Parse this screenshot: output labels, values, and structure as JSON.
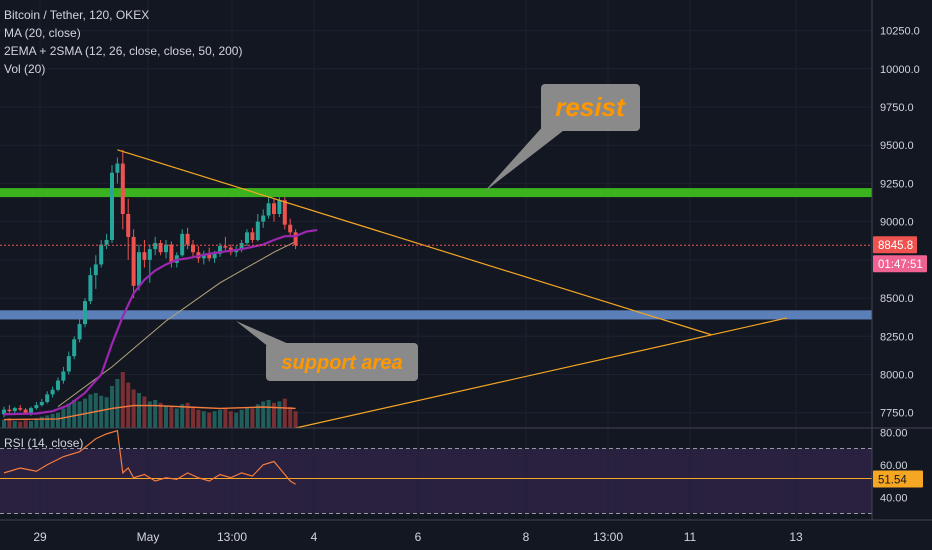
{
  "header": {
    "symbol": "Bitcoin / Tether, 120, OKEX",
    "indicators": [
      "MA (20, close)",
      "2EMA + 2SMA (12, 26, close, close, 50, 200)",
      "Vol (20)"
    ]
  },
  "rsi_label": "RSI (14, close)",
  "annotations": {
    "resist": "resist",
    "support": "support area"
  },
  "price_badge": "8845.8",
  "timer_badge": "01:47:51",
  "rsi_badge": "51.54",
  "colors": {
    "background": "#131722",
    "up": "#26a69a",
    "down": "#ef5350",
    "resist_line": "#3bb31f",
    "support_band": "#5b7fb8",
    "trendline": "#f5a623",
    "ma": "#9c27b0",
    "label_box": "#8a8a8a",
    "label_text": "#ff9800",
    "price_badge": "#ef5350",
    "rsi_line": "#f57c3d"
  },
  "chart_data": [
    {
      "type": "candlestick",
      "title": "Bitcoin / Tether, 120, OKEX",
      "y_ticks": [
        10250.0,
        10000.0,
        9750.0,
        9500.0,
        9250.0,
        9000.0,
        8750.0,
        8500.0,
        8250.0,
        8000.0,
        7750.0
      ],
      "x_ticks": [
        "29",
        "May",
        "13:00",
        "4",
        "6",
        "8",
        "13:00",
        "11",
        "13"
      ],
      "ylim": [
        7650,
        10450
      ],
      "last_price": 8845.8,
      "resistance": 9190,
      "support_band": [
        8360,
        8420
      ],
      "candles": [
        [
          7740,
          7790,
          7720,
          7770
        ],
        [
          7770,
          7800,
          7750,
          7760
        ],
        [
          7760,
          7790,
          7740,
          7780
        ],
        [
          7780,
          7800,
          7760,
          7770
        ],
        [
          7770,
          7780,
          7740,
          7750
        ],
        [
          7750,
          7790,
          7730,
          7780
        ],
        [
          7780,
          7820,
          7770,
          7800
        ],
        [
          7800,
          7840,
          7790,
          7820
        ],
        [
          7820,
          7890,
          7810,
          7870
        ],
        [
          7870,
          7920,
          7850,
          7900
        ],
        [
          7900,
          7980,
          7890,
          7960
        ],
        [
          7960,
          8050,
          7940,
          8020
        ],
        [
          8020,
          8150,
          8000,
          8120
        ],
        [
          8120,
          8250,
          8100,
          8230
        ],
        [
          8230,
          8360,
          8210,
          8330
        ],
        [
          8330,
          8500,
          8310,
          8480
        ],
        [
          8480,
          8700,
          8460,
          8650
        ],
        [
          8650,
          8780,
          8560,
          8720
        ],
        [
          8720,
          8880,
          8700,
          8850
        ],
        [
          8850,
          8920,
          8820,
          8880
        ],
        [
          8880,
          9370,
          8860,
          9320
        ],
        [
          9320,
          9420,
          9250,
          9380
        ],
        [
          9380,
          9470,
          8950,
          9050
        ],
        [
          9050,
          9150,
          8750,
          8900
        ],
        [
          8900,
          8950,
          8500,
          8580
        ],
        [
          8580,
          8850,
          8550,
          8800
        ],
        [
          8800,
          8880,
          8700,
          8750
        ],
        [
          8750,
          8850,
          8600,
          8820
        ],
        [
          8820,
          8900,
          8780,
          8860
        ],
        [
          8860,
          8880,
          8780,
          8800
        ],
        [
          8800,
          8880,
          8760,
          8850
        ],
        [
          8850,
          8870,
          8700,
          8730
        ],
        [
          8730,
          8800,
          8700,
          8780
        ],
        [
          8780,
          8950,
          8770,
          8920
        ],
        [
          8920,
          8960,
          8820,
          8850
        ],
        [
          8850,
          8880,
          8760,
          8800
        ],
        [
          8800,
          8840,
          8730,
          8760
        ],
        [
          8760,
          8810,
          8720,
          8790
        ],
        [
          8790,
          8830,
          8740,
          8760
        ],
        [
          8760,
          8810,
          8730,
          8790
        ],
        [
          8790,
          8860,
          8770,
          8840
        ],
        [
          8840,
          8900,
          8810,
          8830
        ],
        [
          8830,
          8850,
          8780,
          8800
        ],
        [
          8800,
          8840,
          8770,
          8820
        ],
        [
          8820,
          8880,
          8800,
          8860
        ],
        [
          8860,
          8950,
          8840,
          8930
        ],
        [
          8930,
          8960,
          8860,
          8880
        ],
        [
          8880,
          9050,
          8870,
          9000
        ],
        [
          9000,
          9080,
          8960,
          9040
        ],
        [
          9040,
          9160,
          9020,
          9120
        ],
        [
          9120,
          9150,
          9000,
          9050
        ],
        [
          9050,
          9160,
          9030,
          9140
        ],
        [
          9140,
          9160,
          8950,
          8980
        ],
        [
          8980,
          9020,
          8900,
          8930
        ],
        [
          8930,
          8950,
          8820,
          8845.8
        ]
      ],
      "ma": [
        [
          0,
          7740
        ],
        [
          6,
          7745
        ],
        [
          9,
          7760
        ],
        [
          12,
          7800
        ],
        [
          15,
          7880
        ],
        [
          18,
          8000
        ],
        [
          20,
          8200
        ],
        [
          22,
          8380
        ],
        [
          24,
          8530
        ],
        [
          26,
          8620
        ],
        [
          28,
          8680
        ],
        [
          30,
          8720
        ],
        [
          32,
          8750
        ],
        [
          34,
          8760
        ],
        [
          36,
          8775
        ],
        [
          38,
          8790
        ],
        [
          40,
          8800
        ],
        [
          42,
          8810
        ],
        [
          44,
          8820
        ],
        [
          46,
          8835
        ],
        [
          48,
          8850
        ],
        [
          50,
          8880
        ],
        [
          52,
          8905
        ],
        [
          54,
          8905
        ],
        [
          56,
          8935
        ],
        [
          58,
          8945
        ]
      ],
      "slow_ma": [
        [
          10,
          7790
        ],
        [
          20,
          8050
        ],
        [
          30,
          8350
        ],
        [
          40,
          8600
        ],
        [
          50,
          8800
        ],
        [
          54,
          8870
        ]
      ],
      "trendlines": [
        {
          "name": "upper",
          "from": [
            21,
            9470
          ],
          "to": [
            131,
            8260
          ]
        },
        {
          "name": "lower",
          "from": [
            54,
            7650
          ],
          "to": [
            145,
            8370
          ]
        }
      ],
      "volume_scale_max": 100,
      "volume": [
        12,
        14,
        10,
        9,
        11,
        10,
        14,
        16,
        18,
        20,
        22,
        28,
        35,
        40,
        38,
        42,
        48,
        50,
        46,
        44,
        60,
        70,
        80,
        65,
        55,
        50,
        45,
        38,
        40,
        36,
        32,
        30,
        28,
        34,
        36,
        30,
        26,
        24,
        22,
        24,
        26,
        28,
        24,
        22,
        26,
        30,
        28,
        34,
        38,
        40,
        36,
        38,
        42,
        30,
        24
      ],
      "volume_ma": [
        [
          0,
          12
        ],
        [
          10,
          13
        ],
        [
          20,
          28
        ],
        [
          24,
          32
        ],
        [
          28,
          32
        ],
        [
          34,
          30
        ],
        [
          40,
          28
        ],
        [
          48,
          30
        ],
        [
          54,
          28
        ]
      ]
    },
    {
      "type": "line",
      "title": "RSI (14, close)",
      "y_ticks": [
        80.0,
        60.0,
        40.0
      ],
      "ylim": [
        26,
        82
      ],
      "bands": [
        30,
        70
      ],
      "mid_line": 51.54,
      "values": [
        [
          0,
          55
        ],
        [
          3,
          58
        ],
        [
          6,
          56
        ],
        [
          8,
          60
        ],
        [
          11,
          65
        ],
        [
          14,
          68
        ],
        [
          17,
          76
        ],
        [
          19,
          79
        ],
        [
          21,
          81
        ],
        [
          22,
          55
        ],
        [
          23,
          58
        ],
        [
          24,
          52
        ],
        [
          26,
          54
        ],
        [
          28,
          50
        ],
        [
          30,
          52
        ],
        [
          32,
          51
        ],
        [
          34,
          55
        ],
        [
          36,
          52
        ],
        [
          38,
          50
        ],
        [
          40,
          54
        ],
        [
          42,
          52
        ],
        [
          44,
          55
        ],
        [
          46,
          53
        ],
        [
          48,
          60
        ],
        [
          50,
          62
        ],
        [
          51,
          58
        ],
        [
          52,
          54
        ],
        [
          53,
          50
        ],
        [
          54,
          48
        ]
      ]
    }
  ]
}
